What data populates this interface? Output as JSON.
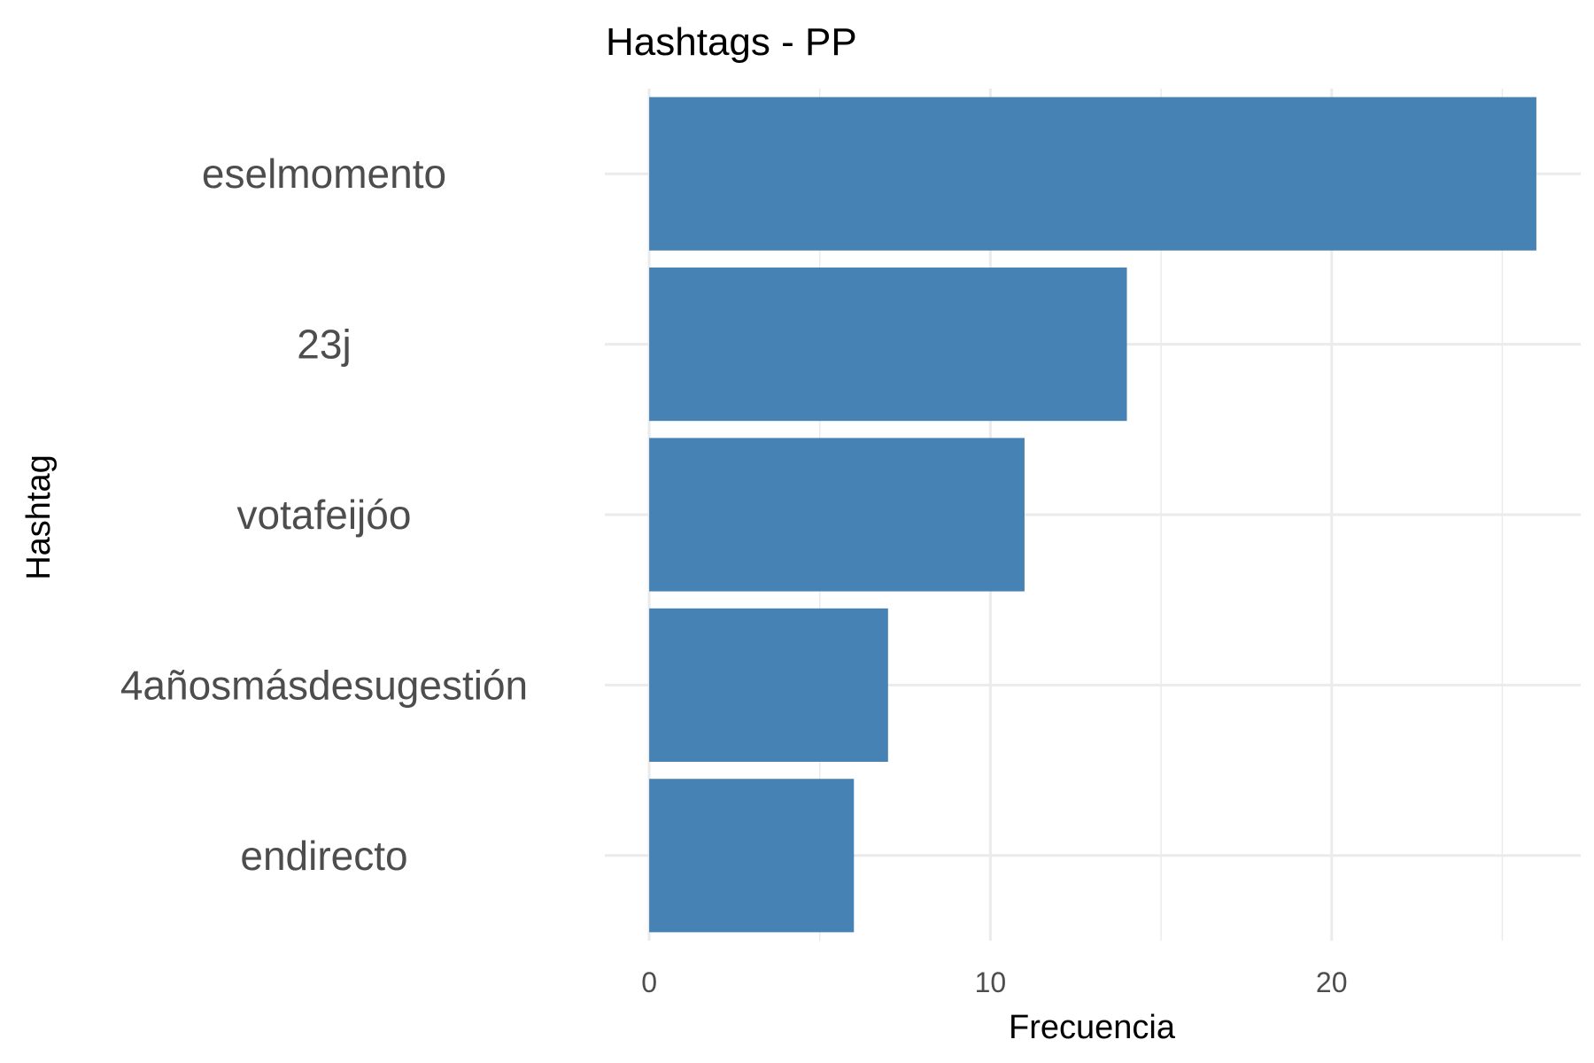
{
  "chart_data": {
    "type": "bar",
    "orientation": "horizontal",
    "title": "Hashtags - PP",
    "xlabel": "Frecuencia",
    "ylabel": "Hashtag",
    "categories": [
      "eselmomento",
      "23j",
      "votafeijóo",
      "4añosmásdesugestión",
      "endirecto"
    ],
    "values": [
      26,
      14,
      11,
      7,
      6
    ],
    "xlim": [
      -1.3,
      27.3
    ],
    "xticks": [
      0,
      10,
      20
    ],
    "minor_xticks": [
      5,
      15,
      25
    ],
    "grid": true,
    "legend": "none",
    "bar_color": "#4682B4",
    "grid_color": "#EBEBEB"
  }
}
